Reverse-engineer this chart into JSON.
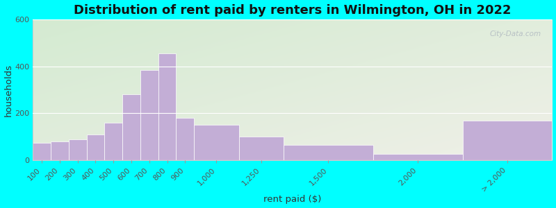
{
  "title": "Distribution of rent paid by renters in Wilmington, OH in 2022",
  "xlabel": "rent paid ($)",
  "ylabel": "households",
  "bar_labels": [
    "100",
    "200",
    "300",
    "400",
    "500",
    "600",
    "700",
    "800",
    "900",
    "1,000",
    "1,250",
    "1,500",
    "2,000",
    "> 2,000"
  ],
  "bar_values": [
    75,
    80,
    90,
    110,
    160,
    280,
    385,
    455,
    180,
    150,
    100,
    65,
    27,
    170
  ],
  "bar_color": "#C3AED6",
  "bar_edgecolor": "#ffffff",
  "ylim": [
    0,
    600
  ],
  "yticks": [
    0,
    200,
    400,
    600
  ],
  "bg_color_topleft": "#d4ead4",
  "bg_color_bottomright": "#f0f0e8",
  "outer_bg": "#00ffff",
  "title_fontsize": 13,
  "axis_label_fontsize": 9.5,
  "tick_fontsize": 8,
  "watermark_text": "City-Data.com"
}
